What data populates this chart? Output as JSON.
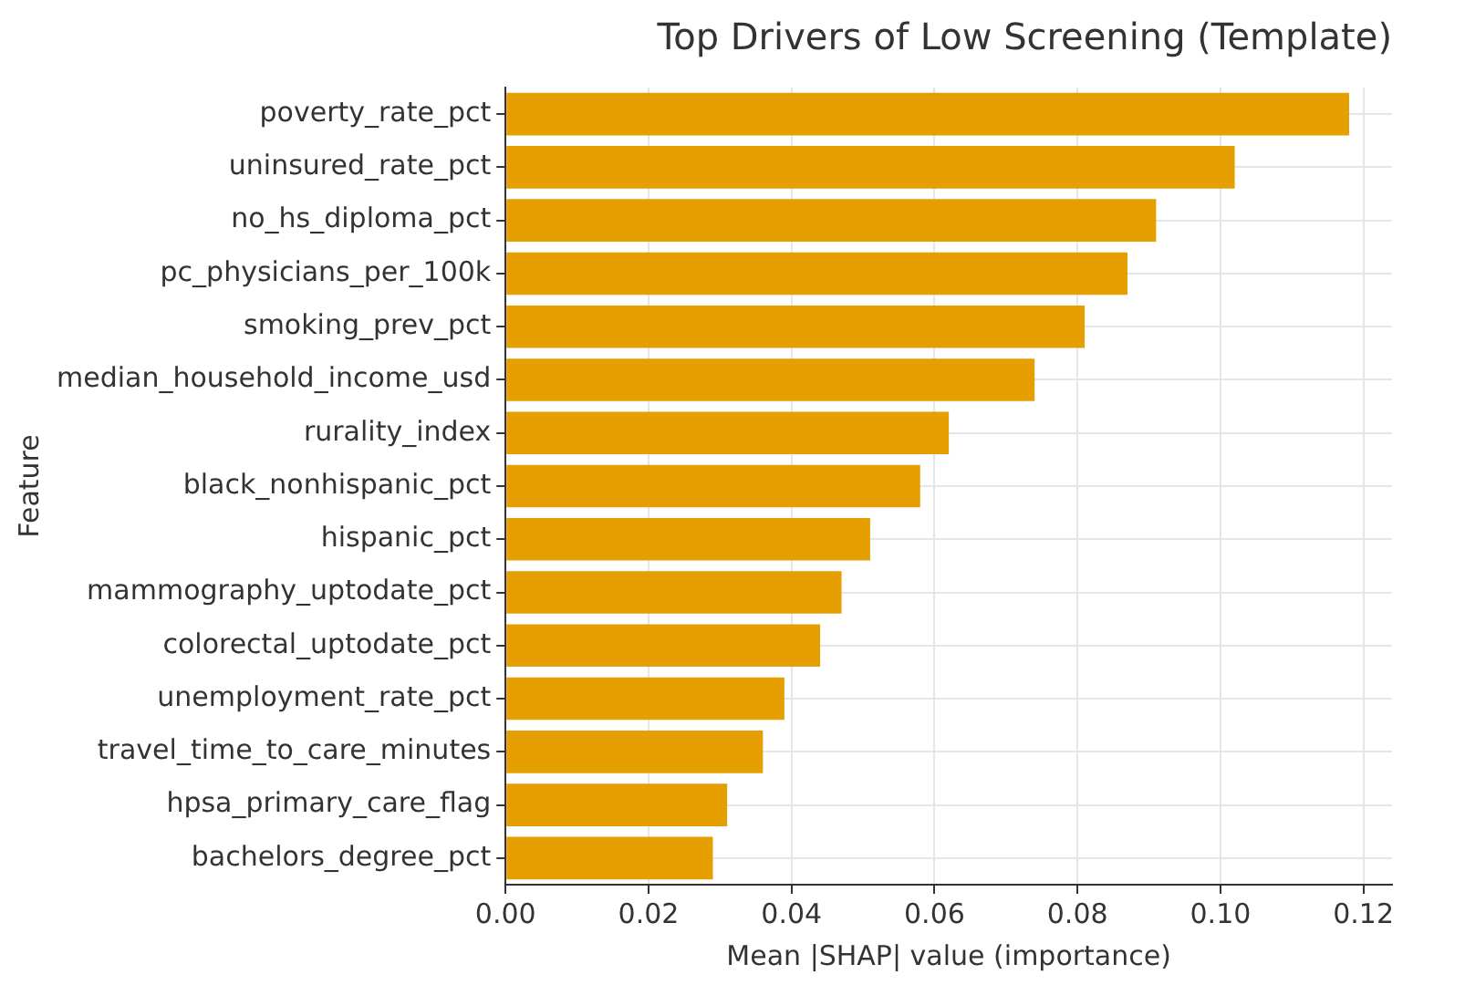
{
  "chart_data": {
    "type": "bar",
    "orientation": "horizontal",
    "title": "Top Drivers of Low Screening (Template)",
    "xlabel": "Mean |SHAP| value (importance)",
    "ylabel": "Feature",
    "categories": [
      "poverty_rate_pct",
      "uninsured_rate_pct",
      "no_hs_diploma_pct",
      "pc_physicians_per_100k",
      "smoking_prev_pct",
      "median_household_income_usd",
      "rurality_index",
      "black_nonhispanic_pct",
      "hispanic_pct",
      "mammography_uptodate_pct",
      "colorectal_uptodate_pct",
      "unemployment_rate_pct",
      "travel_time_to_care_minutes",
      "hpsa_primary_care_flag",
      "bachelors_degree_pct"
    ],
    "values": [
      0.118,
      0.102,
      0.091,
      0.087,
      0.081,
      0.074,
      0.062,
      0.058,
      0.051,
      0.047,
      0.044,
      0.039,
      0.036,
      0.031,
      0.029
    ],
    "color": "#e69f00",
    "xlim": [
      0,
      0.124
    ],
    "xticks": [
      {
        "value": 0,
        "label": "0.00"
      },
      {
        "value": 0.02,
        "label": "0.02"
      },
      {
        "value": 0.04,
        "label": "0.04"
      },
      {
        "value": 0.06,
        "label": "0.06"
      },
      {
        "value": 0.08,
        "label": "0.08"
      },
      {
        "value": 0.1,
        "label": "0.10"
      },
      {
        "value": 0.12,
        "label": "0.12"
      }
    ],
    "grid": true,
    "legend": false
  }
}
